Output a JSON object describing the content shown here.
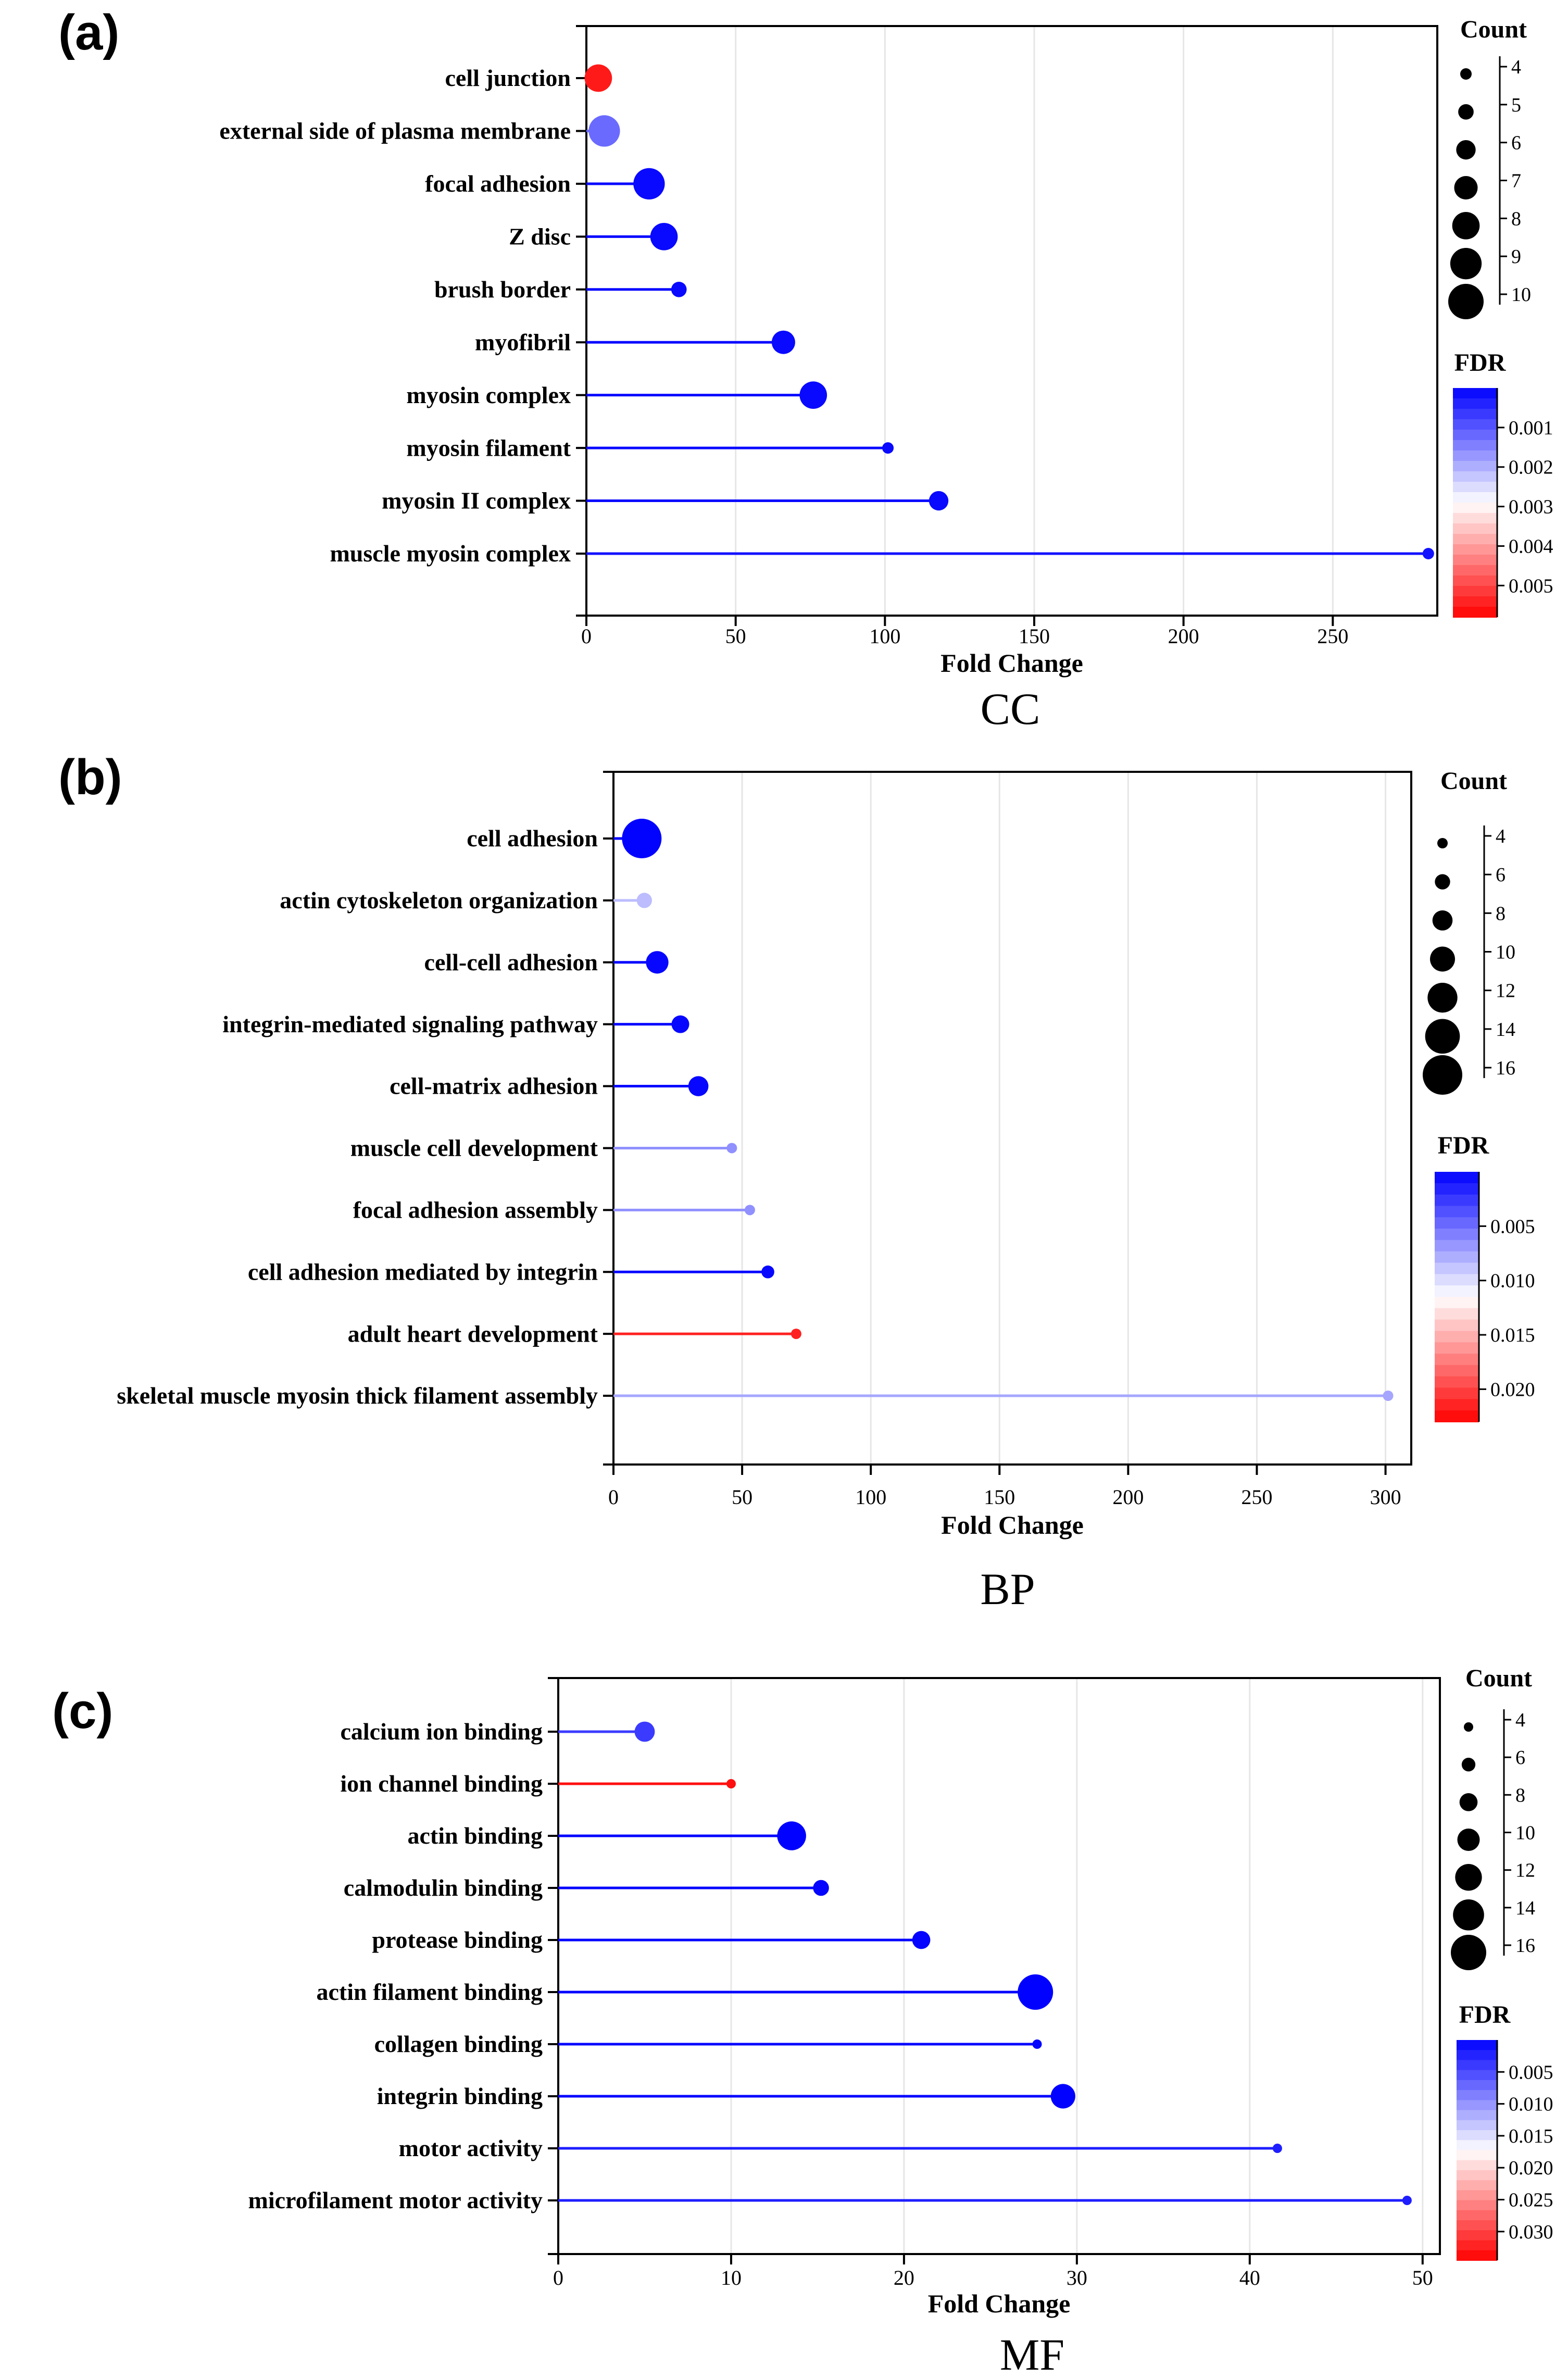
{
  "figure": {
    "panels": [
      {
        "letter": "(a)",
        "caption": "CC"
      },
      {
        "letter": "(b)",
        "caption": "BP"
      },
      {
        "letter": "(c)",
        "caption": "MF"
      }
    ],
    "colors": {
      "high_sig": "#0000ff",
      "mid": "#ffffff",
      "low_sig": "#ff0000",
      "grid": "#e6e6e6",
      "axis": "#000000"
    }
  },
  "chart_data": [
    {
      "type": "scatter",
      "subtype": "lollipop",
      "panel": "(a)",
      "caption": "CC",
      "xlabel": "Fold Change",
      "ylabel": "",
      "xlim": [
        0,
        285
      ],
      "xticks": [
        0,
        50,
        100,
        150,
        200,
        250
      ],
      "grid": true,
      "categories": [
        "cell junction",
        "external side of plasma membrane",
        "focal adhesion",
        "Z disc",
        "brush border",
        "myofibril",
        "myosin complex",
        "myosin filament",
        "myosin II complex",
        "muscle myosin complex"
      ],
      "values": [
        4,
        6,
        21,
        26,
        31,
        66,
        76,
        101,
        118,
        282
      ],
      "count": [
        8,
        9,
        9,
        8,
        5,
        7,
        8,
        4,
        6,
        3
      ],
      "fdr": [
        0.0055,
        0.0012,
        0.0001,
        0.0001,
        0.0001,
        0.0001,
        0.0001,
        0.0001,
        0.0001,
        0.0002
      ],
      "size_legend": {
        "title": "Count",
        "values": [
          4,
          5,
          6,
          7,
          8,
          9,
          10
        ],
        "labels": [
          "4",
          "5",
          "6",
          "7",
          "8",
          "9",
          "10"
        ]
      },
      "color_legend": {
        "title": "FDR",
        "range": [
          0,
          0.0058
        ],
        "ticks": [
          0.001,
          0.002,
          0.003,
          0.004,
          0.005
        ],
        "labels": [
          "0.001",
          "0.002",
          "0.003",
          "0.004",
          "0.005"
        ]
      }
    },
    {
      "type": "scatter",
      "subtype": "lollipop",
      "panel": "(b)",
      "caption": "BP",
      "xlabel": "Fold Change",
      "ylabel": "",
      "xlim": [
        0,
        310
      ],
      "xticks": [
        0,
        50,
        100,
        150,
        200,
        250,
        300
      ],
      "grid": true,
      "categories": [
        "cell adhesion",
        "actin cytoskeleton organization",
        "cell-cell adhesion",
        "integrin-mediated signaling pathway",
        "cell-matrix adhesion",
        "muscle cell development",
        "focal adhesion assembly",
        "cell adhesion mediated by integrin",
        "adult heart development",
        "skeletal muscle myosin thick filament assembly"
      ],
      "values": [
        11,
        12,
        17,
        26,
        33,
        46,
        53,
        60,
        71,
        301
      ],
      "count": [
        16,
        6,
        9,
        7,
        8,
        4,
        4,
        5,
        3,
        3
      ],
      "fdr": [
        0.0001,
        0.0085,
        0.0003,
        0.0003,
        0.0003,
        0.0065,
        0.0065,
        0.0003,
        0.0215,
        0.0075
      ],
      "size_legend": {
        "title": "Count",
        "values": [
          4,
          6,
          8,
          10,
          12,
          14,
          16
        ],
        "labels": [
          "4",
          "6",
          "8",
          "10",
          "12",
          "14",
          "16"
        ]
      },
      "color_legend": {
        "title": "FDR",
        "range": [
          0,
          0.023
        ],
        "ticks": [
          0.005,
          0.01,
          0.015,
          0.02
        ],
        "labels": [
          "0.005",
          "0.010",
          "0.015",
          "0.020"
        ]
      }
    },
    {
      "type": "scatter",
      "subtype": "lollipop",
      "panel": "(c)",
      "caption": "MF",
      "xlabel": "Fold Change",
      "ylabel": "",
      "xlim": [
        0,
        51
      ],
      "xticks": [
        0,
        10,
        20,
        30,
        40,
        50
      ],
      "grid": true,
      "categories": [
        "calcium ion binding",
        "ion channel binding",
        "actin binding",
        "calmodulin binding",
        "protease binding",
        "actin filament binding",
        "collagen binding",
        "integrin binding",
        "motor activity",
        "microfilament motor activity"
      ],
      "values": [
        5,
        10,
        13.5,
        15.2,
        21,
        27.6,
        27.7,
        29.2,
        41.6,
        49.1
      ],
      "count": [
        9,
        3,
        13,
        7,
        8,
        16,
        4,
        11,
        3,
        3
      ],
      "fdr": [
        0.004,
        0.0335,
        0.0001,
        0.0003,
        0.0003,
        0.0001,
        0.0003,
        0.0001,
        0.002,
        0.002
      ],
      "size_legend": {
        "title": "Count",
        "values": [
          4,
          6,
          8,
          10,
          12,
          14,
          16
        ],
        "labels": [
          "4",
          "6",
          "8",
          "10",
          "12",
          "14",
          "16"
        ]
      },
      "color_legend": {
        "title": "FDR",
        "range": [
          0,
          0.0345
        ],
        "ticks": [
          0.005,
          0.01,
          0.015,
          0.02,
          0.025,
          0.03
        ],
        "labels": [
          "0.005",
          "0.010",
          "0.015",
          "0.020",
          "0.025",
          "0.030"
        ]
      }
    }
  ]
}
